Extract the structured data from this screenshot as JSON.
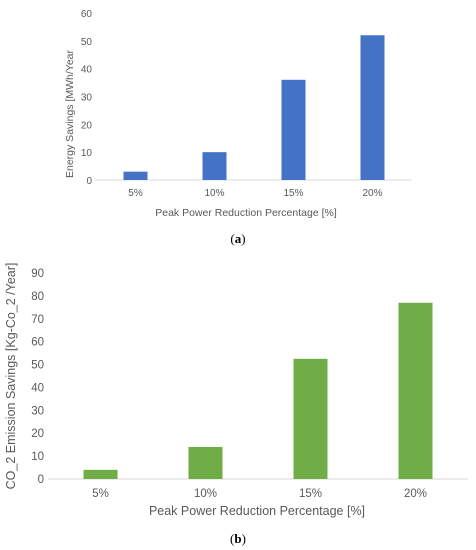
{
  "chart_data": [
    {
      "type": "bar",
      "caption": "a",
      "categories": [
        "5%",
        "10%",
        "15%",
        "20%"
      ],
      "values": [
        3,
        10,
        36,
        52
      ],
      "xlabel": "Peak Power Reduction Percentage [%]",
      "ylabel": "Energy Savings [MWh/Year",
      "ylim": [
        0,
        60
      ],
      "yticks": [
        "0",
        "10",
        "20",
        "30",
        "40",
        "50",
        "60"
      ],
      "grid": false,
      "color": "#4472c4"
    },
    {
      "type": "bar",
      "caption": "b",
      "categories": [
        "5%",
        "10%",
        "15%",
        "20%"
      ],
      "values": [
        4,
        14,
        52.5,
        77
      ],
      "xlabel": "Peak Power Reduction Percentage [%]",
      "ylabel": "CO_2 Emission Savings [Kg-Co_2 /Year]",
      "ylim": [
        0,
        90
      ],
      "yticks": [
        "0",
        "10",
        "20",
        "30",
        "40",
        "50",
        "60",
        "70",
        "80",
        "90"
      ],
      "grid": false,
      "color": "#70ad47"
    }
  ]
}
